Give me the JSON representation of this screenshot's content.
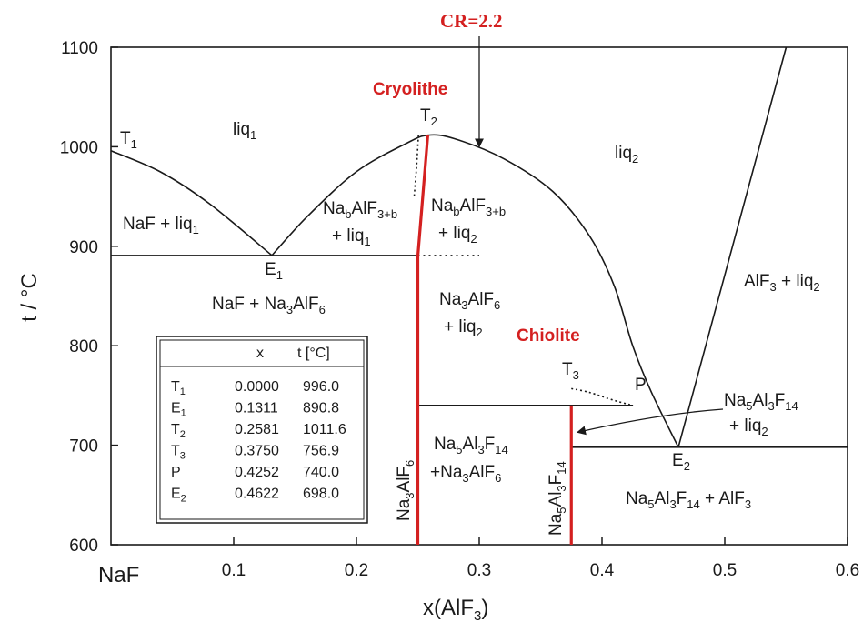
{
  "chart_data": {
    "type": "line",
    "xlabel": "x(AlF3)",
    "ylabel": "t / °C",
    "xlim": [
      0,
      0.6
    ],
    "ylim": [
      600,
      1100
    ],
    "x_ticks": [
      "0.1",
      "0.2",
      "0.3",
      "0.4",
      "0.5",
      "0.6"
    ],
    "y_ticks": [
      "600",
      "700",
      "800",
      "900",
      "1000",
      "1100"
    ],
    "x_origin_label": "NaF",
    "grid": false,
    "liquidus_left": [
      [
        0.0,
        996
      ],
      [
        0.04,
        975
      ],
      [
        0.08,
        943
      ],
      [
        0.1311,
        890.8
      ]
    ],
    "liquidus_mid": [
      [
        0.1311,
        890.8
      ],
      [
        0.16,
        930
      ],
      [
        0.2,
        975
      ],
      [
        0.24,
        1003
      ],
      [
        0.2581,
        1011.6
      ],
      [
        0.28,
        1008
      ],
      [
        0.32,
        988
      ],
      [
        0.36,
        955
      ],
      [
        0.39,
        910
      ],
      [
        0.41,
        860
      ],
      [
        0.425,
        800
      ],
      [
        0.44,
        754
      ],
      [
        0.4622,
        698
      ]
    ],
    "liquidus_right": [
      [
        0.4622,
        698
      ],
      [
        0.55,
        1100
      ]
    ],
    "eutectic_E1": [
      [
        0.0,
        890.8
      ],
      [
        0.25,
        890.8
      ]
    ],
    "eutectic_dotted_E1": [
      [
        0.25,
        890.8
      ],
      [
        0.3,
        890.8
      ]
    ],
    "peritectic_P": [
      [
        0.25,
        740
      ],
      [
        0.4252,
        740
      ]
    ],
    "eutectic_E2": [
      [
        0.375,
        698
      ],
      [
        0.6,
        698
      ]
    ],
    "dotted_T2": [
      [
        0.2505,
        1011.6
      ],
      [
        0.249,
        980
      ],
      [
        0.247,
        950
      ]
    ],
    "dotted_T3": [
      [
        0.375,
        756.9
      ],
      [
        0.39,
        753
      ],
      [
        0.41,
        745
      ],
      [
        0.4252,
        740
      ]
    ],
    "compound_cryolithe": [
      [
        0.25,
        600
      ],
      [
        0.25,
        890
      ],
      [
        0.2581,
        1011.6
      ]
    ],
    "compound_chiolite": [
      [
        0.375,
        600
      ],
      [
        0.375,
        740
      ]
    ],
    "cr_arrow": [
      [
        0.3,
        1100
      ],
      [
        0.3,
        1000
      ]
    ],
    "chiolite_arrow_from": [
      0.4,
      737
    ],
    "chiolite_arrow_to": [
      0.38,
      713
    ],
    "points": [
      {
        "name": "T1",
        "x": 0.0,
        "t": 996.0
      },
      {
        "name": "E1",
        "x": 0.1311,
        "t": 890.8
      },
      {
        "name": "T2",
        "x": 0.2581,
        "t": 1011.6
      },
      {
        "name": "T3",
        "x": 0.375,
        "t": 756.9
      },
      {
        "name": "P",
        "x": 0.4252,
        "t": 740.0
      },
      {
        "name": "E2",
        "x": 0.4622,
        "t": 698.0
      }
    ],
    "table": {
      "header": [
        "x",
        "t [°C]"
      ],
      "rows": [
        [
          "T1",
          "0.0000",
          "996.0"
        ],
        [
          "E1",
          "0.1311",
          "890.8"
        ],
        [
          "T2",
          "0.2581",
          "1011.6"
        ],
        [
          "T3",
          "0.3750",
          "756.9"
        ],
        [
          "P",
          "0.4252",
          "740.0"
        ],
        [
          "E2",
          "0.4622",
          "698.0"
        ]
      ]
    },
    "region_labels": [
      "liq1",
      "liq2",
      "NaF + liq1",
      "NaF + Na3AlF6",
      "NabAlF3+b + liq1",
      "NabAlF3+b + liq2",
      "Na3AlF6 + liq2",
      "Na5Al3F14 +Na3AlF6",
      "Na5Al3F14 + AlF3",
      "AlF3 + liq2",
      "Na5Al3F14 + liq2"
    ],
    "phase_labels": [
      "Na3AlF6",
      "Na5Al3F14"
    ],
    "annotations": [
      "Cryolithe",
      "Chiolite",
      "CR=2.2"
    ],
    "colors": {
      "line": "#1a1a1a",
      "compound": "#d42020"
    }
  }
}
